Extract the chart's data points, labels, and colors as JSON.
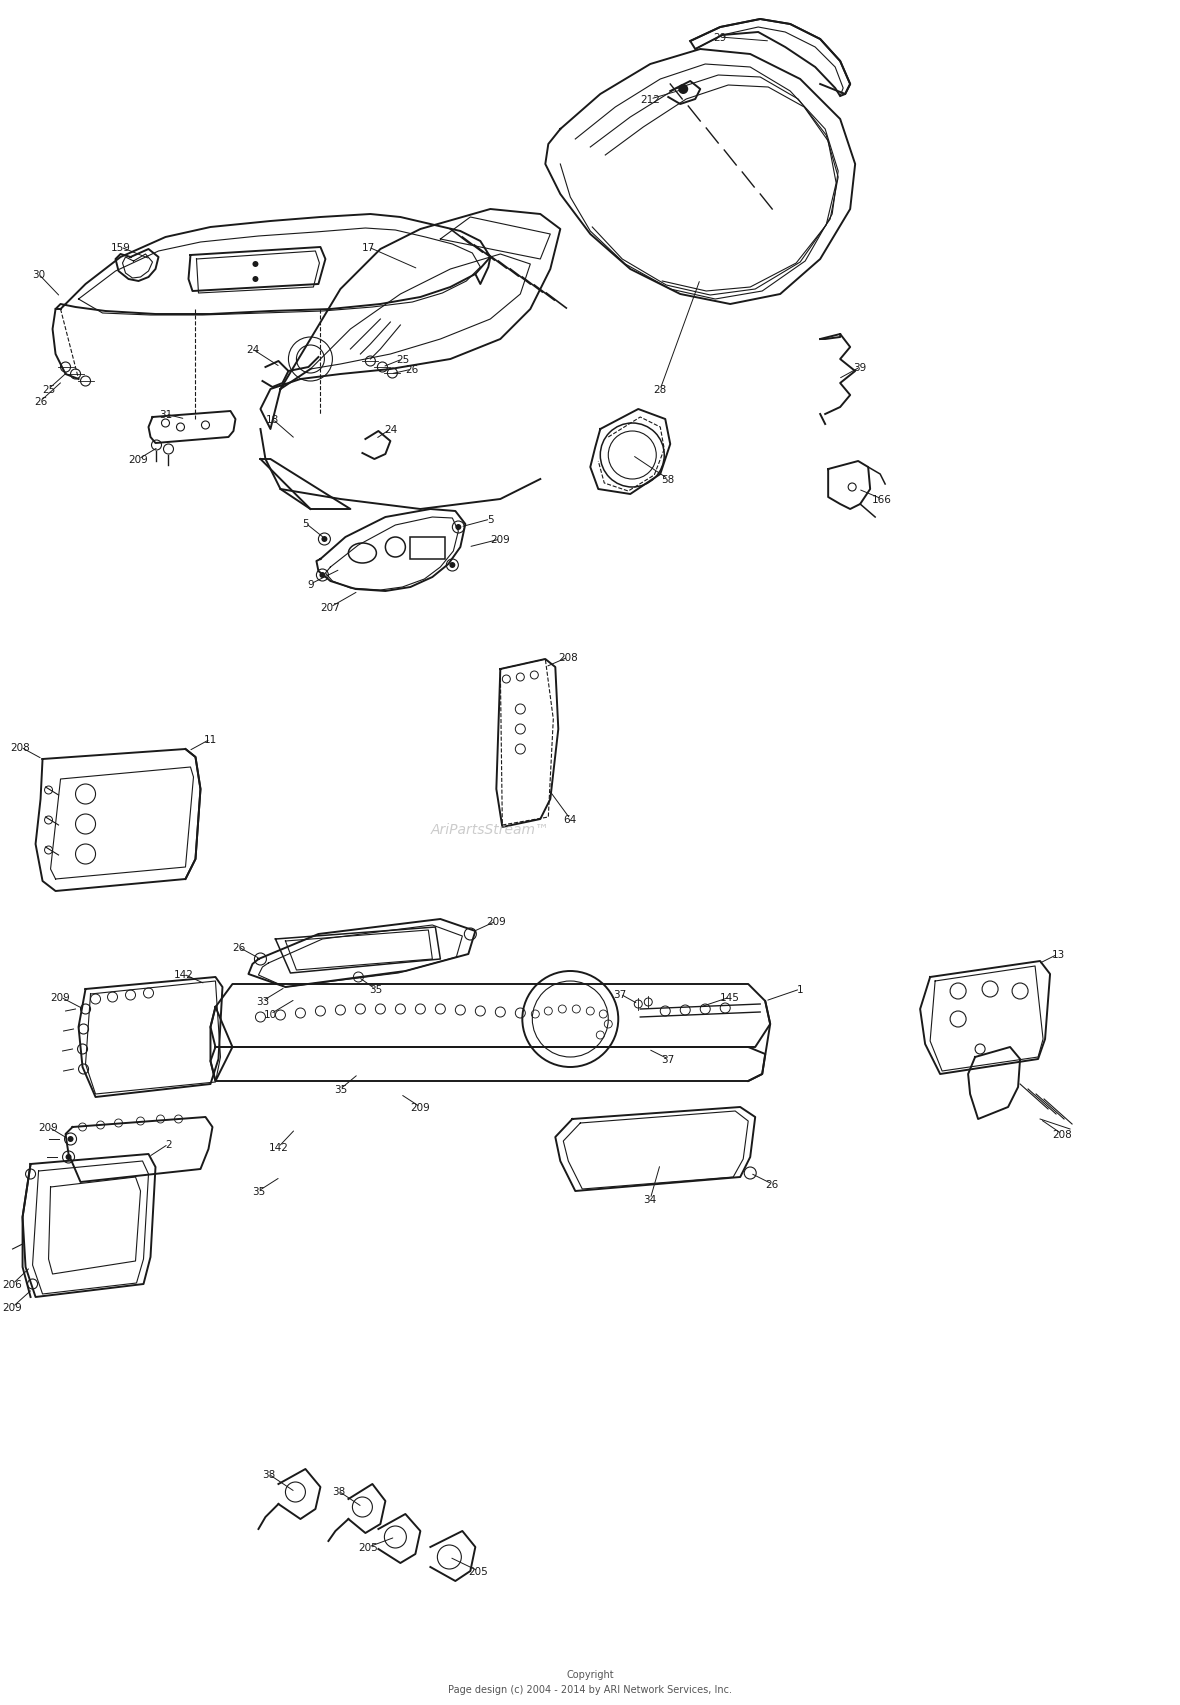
{
  "background_color": "#ffffff",
  "line_color": "#1a1a1a",
  "text_color": "#1a1a1a",
  "figsize": [
    11.8,
    17.06
  ],
  "dpi": 100,
  "copyright_line1": "Copyright",
  "copyright_line2": "Page design (c) 2004 - 2014 by ARI Network Services, Inc.",
  "watermark": "AriPartsStream™",
  "lw_main": 1.4,
  "lw_thin": 0.8,
  "lw_med": 1.1
}
